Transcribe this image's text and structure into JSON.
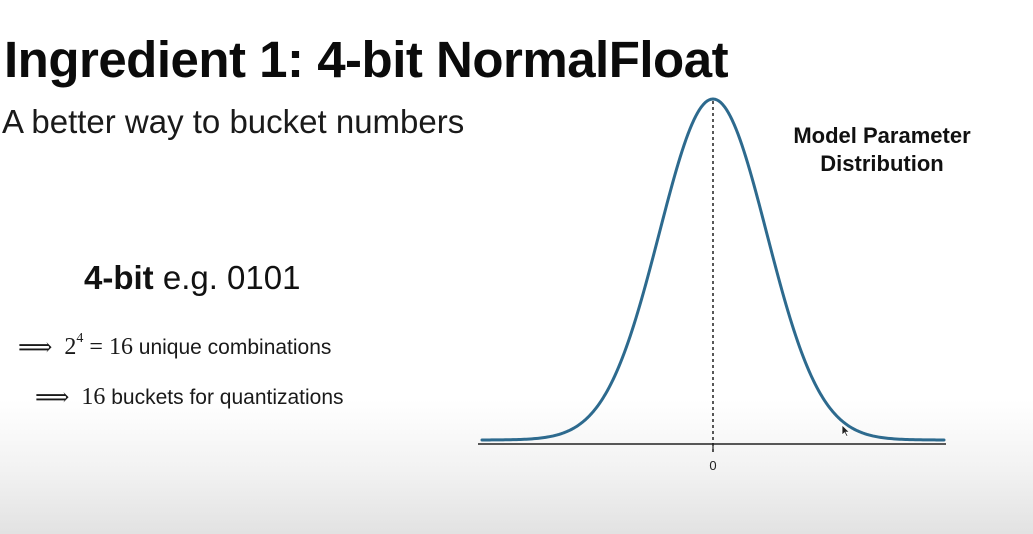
{
  "slide": {
    "title": "Ingredient 1: 4-bit NormalFloat",
    "subtitle": "A better way to bucket numbers",
    "bit_bold": "4-bit",
    "bit_rest": " e.g. 0101",
    "bullets": [
      {
        "arrow": "⟹",
        "math_base": "2",
        "math_exp": "4",
        "math_rest": " = 16",
        "text": " unique combinations"
      },
      {
        "arrow": "⟹",
        "math_base": "16",
        "text": " buckets for quantizations"
      }
    ]
  },
  "chart_data": {
    "type": "line",
    "title": "Model Parameter\nDistribution",
    "x_tick_labels": [
      "0"
    ],
    "x_ticks": [
      0
    ],
    "xlim": [
      -4.3,
      4.3
    ],
    "ylim": [
      0,
      1.0
    ],
    "series": [
      {
        "distribution": "normal",
        "mean": 0,
        "std": 1,
        "peak": 1.0,
        "color": "#2d6a8e"
      }
    ],
    "mean_line": {
      "x": 0,
      "style": "dotted"
    },
    "grid": false
  }
}
